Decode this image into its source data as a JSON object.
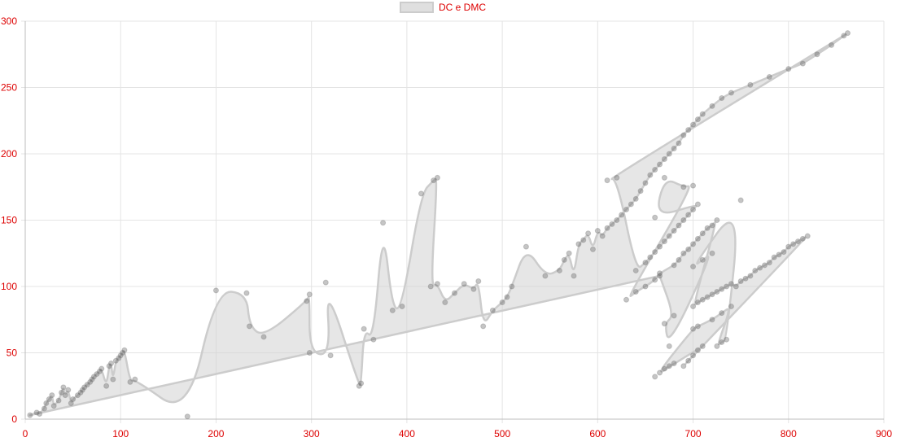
{
  "chart_data": {
    "type": "scatter",
    "title": "",
    "xlabel": "",
    "ylabel": "",
    "xlim": [
      0,
      900
    ],
    "ylim": [
      0,
      300
    ],
    "x_ticks": [
      0,
      100,
      200,
      300,
      400,
      500,
      600,
      700,
      800,
      900
    ],
    "y_ticks": [
      0,
      50,
      100,
      150,
      200,
      250,
      300
    ],
    "grid": true,
    "legend_position": "top-center",
    "tick_color": "#dd0000",
    "series": [
      {
        "name": "DC e DMC",
        "color": "#cccccc",
        "fill": "rgba(210,210,210,0.55)",
        "point_color": "rgba(90,90,90,0.35)",
        "points": [
          [
            5,
            3
          ],
          [
            12,
            5
          ],
          [
            15,
            4
          ],
          [
            20,
            8
          ],
          [
            22,
            12
          ],
          [
            25,
            15
          ],
          [
            28,
            18
          ],
          [
            30,
            10
          ],
          [
            35,
            14
          ],
          [
            38,
            20
          ],
          [
            40,
            24
          ],
          [
            42,
            18
          ],
          [
            45,
            22
          ],
          [
            48,
            12
          ],
          [
            50,
            15
          ],
          [
            55,
            18
          ],
          [
            58,
            20
          ],
          [
            60,
            22
          ],
          [
            62,
            24
          ],
          [
            65,
            26
          ],
          [
            68,
            28
          ],
          [
            70,
            30
          ],
          [
            72,
            32
          ],
          [
            75,
            34
          ],
          [
            78,
            36
          ],
          [
            80,
            38
          ],
          [
            85,
            25
          ],
          [
            88,
            40
          ],
          [
            90,
            42
          ],
          [
            92,
            30
          ],
          [
            95,
            44
          ],
          [
            98,
            46
          ],
          [
            100,
            48
          ],
          [
            102,
            50
          ],
          [
            104,
            52
          ],
          [
            110,
            28
          ],
          [
            115,
            30
          ],
          [
            170,
            2
          ],
          [
            200,
            97
          ],
          [
            232,
            95
          ],
          [
            235,
            70
          ],
          [
            250,
            62
          ],
          [
            295,
            89
          ],
          [
            298,
            94
          ],
          [
            298,
            50
          ],
          [
            320,
            48
          ],
          [
            315,
            103
          ],
          [
            350,
            25
          ],
          [
            352,
            27
          ],
          [
            355,
            68
          ],
          [
            365,
            60
          ],
          [
            375,
            148
          ],
          [
            385,
            82
          ],
          [
            395,
            85
          ],
          [
            415,
            170
          ],
          [
            428,
            180
          ],
          [
            432,
            182
          ],
          [
            425,
            100
          ],
          [
            432,
            102
          ],
          [
            440,
            88
          ],
          [
            450,
            95
          ],
          [
            460,
            102
          ],
          [
            470,
            98
          ],
          [
            475,
            104
          ],
          [
            480,
            70
          ],
          [
            490,
            82
          ],
          [
            500,
            88
          ],
          [
            505,
            92
          ],
          [
            510,
            100
          ],
          [
            525,
            130
          ],
          [
            545,
            108
          ],
          [
            560,
            112
          ],
          [
            565,
            120
          ],
          [
            570,
            125
          ],
          [
            575,
            108
          ],
          [
            580,
            132
          ],
          [
            585,
            135
          ],
          [
            590,
            140
          ],
          [
            595,
            128
          ],
          [
            600,
            142
          ],
          [
            605,
            138
          ],
          [
            610,
            144
          ],
          [
            615,
            147
          ],
          [
            620,
            150
          ],
          [
            625,
            154
          ],
          [
            630,
            158
          ],
          [
            635,
            162
          ],
          [
            640,
            166
          ],
          [
            645,
            172
          ],
          [
            650,
            178
          ],
          [
            655,
            184
          ],
          [
            660,
            188
          ],
          [
            665,
            192
          ],
          [
            670,
            196
          ],
          [
            675,
            200
          ],
          [
            680,
            204
          ],
          [
            685,
            208
          ],
          [
            690,
            214
          ],
          [
            695,
            218
          ],
          [
            700,
            222
          ],
          [
            705,
            226
          ],
          [
            710,
            230
          ],
          [
            720,
            236
          ],
          [
            730,
            242
          ],
          [
            740,
            246
          ],
          [
            760,
            252
          ],
          [
            780,
            258
          ],
          [
            800,
            264
          ],
          [
            815,
            268
          ],
          [
            830,
            275
          ],
          [
            845,
            282
          ],
          [
            858,
            289
          ],
          [
            862,
            291
          ],
          [
            610,
            180
          ],
          [
            620,
            182
          ],
          [
            640,
            112
          ],
          [
            650,
            118
          ],
          [
            655,
            122
          ],
          [
            660,
            126
          ],
          [
            665,
            130
          ],
          [
            670,
            134
          ],
          [
            675,
            138
          ],
          [
            680,
            142
          ],
          [
            685,
            146
          ],
          [
            690,
            150
          ],
          [
            695,
            154
          ],
          [
            700,
            158
          ],
          [
            705,
            162
          ],
          [
            660,
            152
          ],
          [
            670,
            182
          ],
          [
            690,
            175
          ],
          [
            700,
            176
          ],
          [
            630,
            90
          ],
          [
            640,
            96
          ],
          [
            650,
            100
          ],
          [
            660,
            105
          ],
          [
            665,
            110
          ],
          [
            680,
            116
          ],
          [
            685,
            120
          ],
          [
            690,
            125
          ],
          [
            695,
            128
          ],
          [
            700,
            132
          ],
          [
            705,
            136
          ],
          [
            710,
            140
          ],
          [
            715,
            144
          ],
          [
            720,
            146
          ],
          [
            725,
            150
          ],
          [
            700,
            85
          ],
          [
            705,
            88
          ],
          [
            710,
            90
          ],
          [
            715,
            92
          ],
          [
            720,
            94
          ],
          [
            725,
            96
          ],
          [
            730,
            98
          ],
          [
            735,
            100
          ],
          [
            740,
            102
          ],
          [
            745,
            100
          ],
          [
            750,
            104
          ],
          [
            755,
            106
          ],
          [
            760,
            108
          ],
          [
            765,
            112
          ],
          [
            770,
            114
          ],
          [
            775,
            116
          ],
          [
            780,
            118
          ],
          [
            785,
            122
          ],
          [
            790,
            124
          ],
          [
            795,
            126
          ],
          [
            800,
            130
          ],
          [
            805,
            132
          ],
          [
            810,
            134
          ],
          [
            815,
            136
          ],
          [
            820,
            138
          ],
          [
            690,
            40
          ],
          [
            695,
            44
          ],
          [
            700,
            48
          ],
          [
            705,
            52
          ],
          [
            710,
            55
          ],
          [
            665,
            35
          ],
          [
            670,
            38
          ],
          [
            675,
            40
          ],
          [
            680,
            42
          ],
          [
            660,
            32
          ],
          [
            700,
            68
          ],
          [
            705,
            70
          ],
          [
            720,
            75
          ],
          [
            730,
            80
          ],
          [
            740,
            85
          ],
          [
            725,
            55
          ],
          [
            730,
            58
          ],
          [
            735,
            60
          ],
          [
            750,
            165
          ],
          [
            700,
            115
          ],
          [
            710,
            120
          ],
          [
            720,
            125
          ],
          [
            675,
            55
          ],
          [
            670,
            72
          ],
          [
            680,
            78
          ],
          [
            665,
            108
          ]
        ]
      }
    ]
  }
}
